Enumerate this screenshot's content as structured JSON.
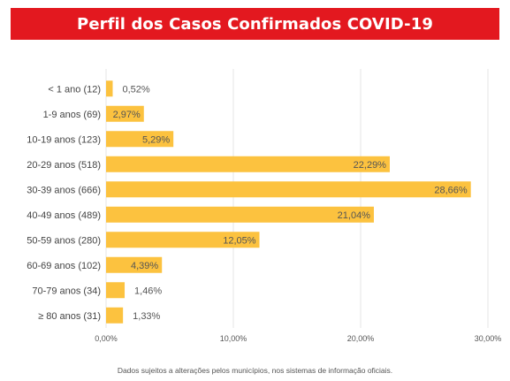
{
  "header": {
    "title": "Perfil dos Casos Confirmados COVID-19"
  },
  "footnote": "Dados sujeitos a alterações pelos municípios, nos sistemas de informação oficiais.",
  "colors": {
    "title_bg": "#e3181f",
    "bar": "#fcc23f",
    "grid": "#e4e4e4"
  },
  "chart_data": {
    "type": "bar",
    "orientation": "horizontal",
    "title": "Perfil dos Casos Confirmados COVID-19",
    "categories": [
      "< 1 ano (12)",
      "1-9 anos (69)",
      "10-19 anos (123)",
      "20-29 anos (518)",
      "30-39 anos (666)",
      "40-49 anos (489)",
      "50-59 anos (280)",
      "60-69 anos (102)",
      "70-79 anos (34)",
      "≥ 80 anos (31)"
    ],
    "values": [
      0.52,
      2.97,
      5.29,
      22.29,
      28.66,
      21.04,
      12.05,
      4.39,
      1.46,
      1.33
    ],
    "value_labels": [
      "0,52%",
      "2,97%",
      "5,29%",
      "22,29%",
      "28,66%",
      "21,04%",
      "12,05%",
      "4,39%",
      "1,46%",
      "1,33%"
    ],
    "xlim": [
      0,
      30
    ],
    "x_ticks": [
      0,
      10,
      20,
      30
    ],
    "x_tick_labels": [
      "0,00%",
      "10,00%",
      "20,00%",
      "30,00%"
    ],
    "grid": true,
    "legend": "none"
  }
}
